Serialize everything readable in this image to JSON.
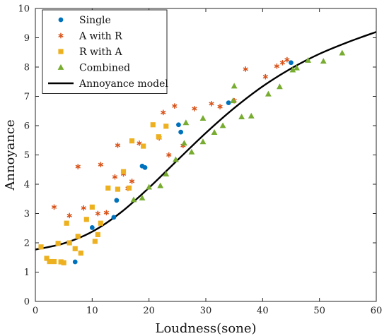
{
  "chart_data": {
    "type": "scatter",
    "xlabel": "Loudness(sone)",
    "ylabel": "Annoyance",
    "xlim": [
      0,
      60
    ],
    "ylim": [
      0,
      10
    ],
    "xticks": [
      0,
      10,
      20,
      30,
      40,
      50,
      60
    ],
    "yticks": [
      0,
      1,
      2,
      3,
      4,
      5,
      6,
      7,
      8,
      9,
      10
    ],
    "grid": false,
    "legend_position": "top-left",
    "series": [
      {
        "name": "Single",
        "marker": "circle",
        "color": "#0072BD",
        "points": [
          [
            7.0,
            1.35
          ],
          [
            10.0,
            2.52
          ],
          [
            13.8,
            2.87
          ],
          [
            14.3,
            3.45
          ],
          [
            18.8,
            4.62
          ],
          [
            19.3,
            4.57
          ],
          [
            25.2,
            6.03
          ],
          [
            25.6,
            5.78
          ],
          [
            34.0,
            6.78
          ],
          [
            45.0,
            8.15
          ]
        ]
      },
      {
        "name": "A with R",
        "marker": "asterisk",
        "color": "#D95319",
        "points": [
          [
            3.3,
            3.22
          ],
          [
            6.0,
            2.93
          ],
          [
            7.5,
            4.6
          ],
          [
            8.5,
            3.19
          ],
          [
            11.0,
            3.0
          ],
          [
            11.5,
            4.67
          ],
          [
            12.5,
            3.03
          ],
          [
            14.0,
            4.25
          ],
          [
            14.5,
            5.33
          ],
          [
            15.5,
            4.35
          ],
          [
            16.3,
            3.86
          ],
          [
            17.0,
            4.1
          ],
          [
            18.3,
            5.4
          ],
          [
            21.8,
            5.58
          ],
          [
            22.5,
            6.45
          ],
          [
            23.5,
            5.0
          ],
          [
            24.5,
            6.67
          ],
          [
            26.0,
            5.32
          ],
          [
            28.0,
            6.58
          ],
          [
            31.0,
            6.75
          ],
          [
            32.5,
            6.65
          ],
          [
            35.0,
            6.85
          ],
          [
            37.0,
            7.93
          ],
          [
            40.5,
            7.67
          ],
          [
            42.5,
            8.03
          ],
          [
            43.5,
            8.15
          ],
          [
            44.3,
            8.25
          ]
        ]
      },
      {
        "name": "R with A",
        "marker": "square",
        "color": "#EDB120",
        "points": [
          [
            1.0,
            1.86
          ],
          [
            2.0,
            1.47
          ],
          [
            2.5,
            1.36
          ],
          [
            3.3,
            1.36
          ],
          [
            4.0,
            1.98
          ],
          [
            4.5,
            1.35
          ],
          [
            5.0,
            1.32
          ],
          [
            5.5,
            2.67
          ],
          [
            6.0,
            2.0
          ],
          [
            7.0,
            1.8
          ],
          [
            7.5,
            2.22
          ],
          [
            8.0,
            1.65
          ],
          [
            9.0,
            2.8
          ],
          [
            10.0,
            3.22
          ],
          [
            10.5,
            2.05
          ],
          [
            11.0,
            2.28
          ],
          [
            11.5,
            2.67
          ],
          [
            12.8,
            3.87
          ],
          [
            14.5,
            3.83
          ],
          [
            15.5,
            4.43
          ],
          [
            16.5,
            3.87
          ],
          [
            17.0,
            5.48
          ],
          [
            19.0,
            5.3
          ],
          [
            20.7,
            6.03
          ],
          [
            21.7,
            5.62
          ],
          [
            23.0,
            5.98
          ]
        ]
      },
      {
        "name": "Combined",
        "marker": "triangle",
        "color": "#77AC30",
        "points": [
          [
            17.3,
            3.47
          ],
          [
            18.8,
            3.53
          ],
          [
            20.0,
            3.9
          ],
          [
            22.0,
            3.95
          ],
          [
            23.0,
            4.35
          ],
          [
            24.7,
            4.84
          ],
          [
            26.2,
            5.4
          ],
          [
            26.5,
            6.1
          ],
          [
            27.5,
            5.1
          ],
          [
            29.5,
            5.45
          ],
          [
            29.5,
            6.25
          ],
          [
            31.5,
            5.77
          ],
          [
            33.0,
            6.0
          ],
          [
            34.8,
            6.85
          ],
          [
            35.0,
            7.35
          ],
          [
            36.3,
            6.3
          ],
          [
            38.0,
            6.33
          ],
          [
            41.0,
            7.08
          ],
          [
            43.0,
            7.33
          ],
          [
            45.3,
            7.9
          ],
          [
            46.0,
            7.97
          ],
          [
            48.0,
            8.23
          ],
          [
            50.7,
            8.2
          ],
          [
            54.0,
            8.48
          ]
        ]
      },
      {
        "name": "Annoyance model",
        "type": "line",
        "color": "#000000",
        "points": [
          [
            0,
            1.77
          ],
          [
            5,
            1.98
          ],
          [
            10,
            2.38
          ],
          [
            15,
            3.03
          ],
          [
            20,
            3.88
          ],
          [
            25,
            4.82
          ],
          [
            30,
            5.75
          ],
          [
            35,
            6.6
          ],
          [
            40,
            7.34
          ],
          [
            45,
            7.95
          ],
          [
            50,
            8.45
          ],
          [
            55,
            8.85
          ],
          [
            60,
            9.2
          ]
        ]
      }
    ]
  }
}
